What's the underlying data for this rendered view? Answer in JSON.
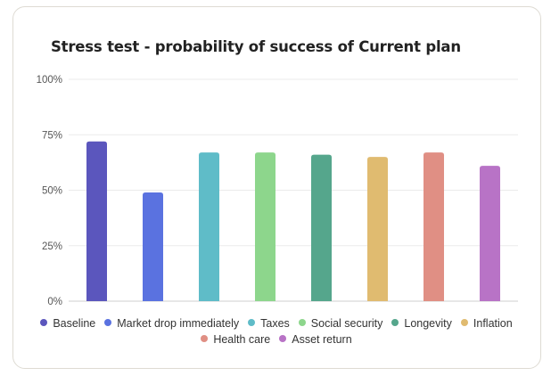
{
  "chart_data": {
    "type": "bar",
    "title": "Stress test - probability of success of Current plan",
    "xlabel": "",
    "ylabel": "",
    "ylim": [
      0,
      100
    ],
    "yticks": [
      "0%",
      "25%",
      "50%",
      "75%",
      "100%"
    ],
    "ytick_values": [
      0,
      25,
      50,
      75,
      100
    ],
    "grid": true,
    "legend_position": "bottom",
    "categories": [
      "Baseline",
      "Market drop immediately",
      "Taxes",
      "Social security",
      "Longevity",
      "Inflation",
      "Health care",
      "Asset return"
    ],
    "values": [
      72,
      49,
      67,
      67,
      66,
      65,
      67,
      61
    ],
    "colors": [
      "#5b56bd",
      "#5a72e0",
      "#5fbcc8",
      "#8dd68c",
      "#55a68c",
      "#e0bb70",
      "#e08f84",
      "#b873c6"
    ]
  }
}
